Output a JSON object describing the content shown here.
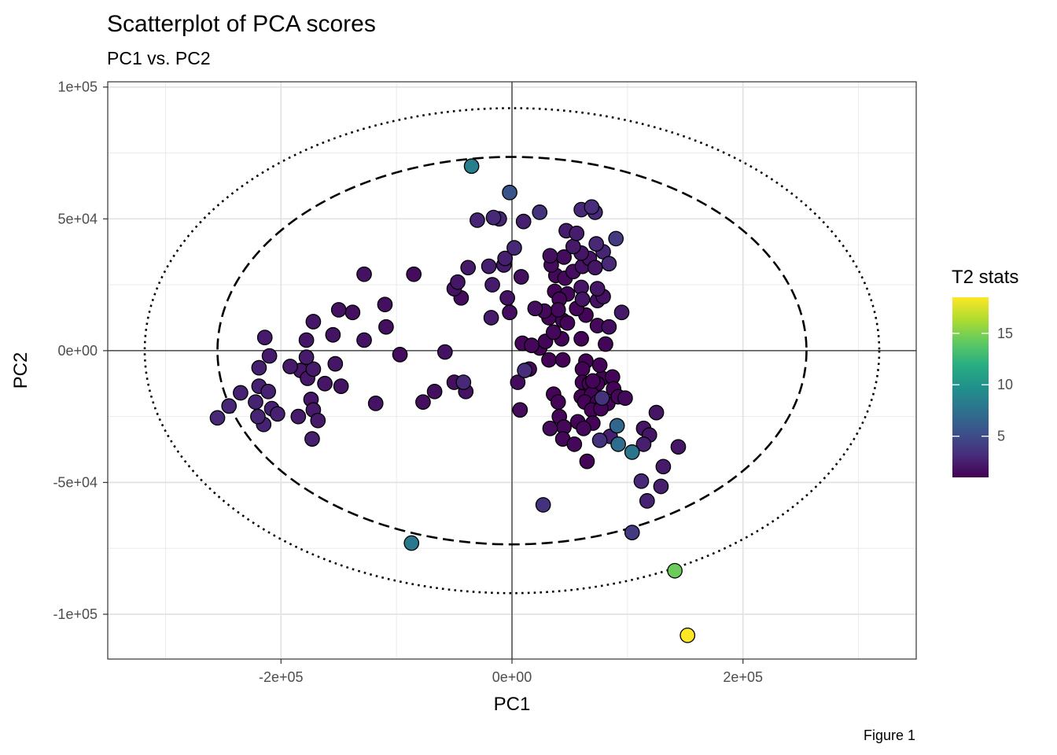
{
  "chart_data": {
    "type": "scatter",
    "title": "Scatterplot of PCA scores",
    "subtitle": "PC1 vs. PC2",
    "xlabel": "PC1",
    "ylabel": "PC2",
    "caption": "Figure 1",
    "xlim": [
      -350000,
      350000
    ],
    "ylim": [
      -117000,
      102000
    ],
    "x_ticks": [
      {
        "value": -200000,
        "label": "-2e+05"
      },
      {
        "value": 0,
        "label": "0e+00"
      },
      {
        "value": 200000,
        "label": "2e+05"
      }
    ],
    "y_ticks": [
      {
        "value": 100000,
        "label": "1e+05"
      },
      {
        "value": 50000,
        "label": "5e+04"
      },
      {
        "value": 0,
        "label": "0e+00"
      },
      {
        "value": -50000,
        "label": "-5e+04"
      },
      {
        "value": -100000,
        "label": "-1e+05"
      }
    ],
    "grid": true,
    "reference_lines": {
      "x": 0,
      "y": 0
    },
    "ellipses": [
      {
        "style": "dashed",
        "rx": 255000,
        "ry": 73500
      },
      {
        "style": "dotted",
        "rx": 318000,
        "ry": 92000
      }
    ],
    "colorbar": {
      "title": "T2 stats",
      "min": 1,
      "max": 18.5,
      "ticks": [
        {
          "value": 5,
          "label": "5"
        },
        {
          "value": 10,
          "label": "10"
        },
        {
          "value": 15,
          "label": "15"
        }
      ],
      "colormap": "viridis",
      "placement": "right"
    },
    "points": [
      {
        "x": -35000,
        "y": 70000,
        "t2": 8.5
      },
      {
        "x": -2000,
        "y": 60000,
        "t2": 5.5
      },
      {
        "x": 24000,
        "y": 52500,
        "t2": 3.5
      },
      {
        "x": -30000,
        "y": 49500,
        "t2": 2.8
      },
      {
        "x": -16000,
        "y": 50500,
        "t2": 3.0
      },
      {
        "x": -11000,
        "y": 50000,
        "t2": 2.8
      },
      {
        "x": 10000,
        "y": 49000,
        "t2": 2.5
      },
      {
        "x": 47000,
        "y": 45500,
        "t2": 2.4
      },
      {
        "x": 56000,
        "y": 44500,
        "t2": 2.4
      },
      {
        "x": 60000,
        "y": 53500,
        "t2": 3.0
      },
      {
        "x": 69000,
        "y": 54500,
        "t2": 3.2
      },
      {
        "x": 72000,
        "y": 52500,
        "t2": 3.0
      },
      {
        "x": 90000,
        "y": 42500,
        "t2": 4.0
      },
      {
        "x": 73000,
        "y": 40500,
        "t2": 3.0
      },
      {
        "x": 53000,
        "y": 39500,
        "t2": 2.2
      },
      {
        "x": 60000,
        "y": 37000,
        "t2": 2.0
      },
      {
        "x": 79000,
        "y": 37500,
        "t2": 2.8
      },
      {
        "x": 2000,
        "y": 39000,
        "t2": 3.0
      },
      {
        "x": -6000,
        "y": 35000,
        "t2": 2.5
      },
      {
        "x": 33000,
        "y": 36000,
        "t2": 1.7
      },
      {
        "x": 45000,
        "y": 35500,
        "t2": 1.5
      },
      {
        "x": 67000,
        "y": 35000,
        "t2": 1.9
      },
      {
        "x": -38000,
        "y": 31500,
        "t2": 2.2
      },
      {
        "x": -20000,
        "y": 32000,
        "t2": 2.5
      },
      {
        "x": -7000,
        "y": 32500,
        "t2": 2.2
      },
      {
        "x": 34000,
        "y": 32500,
        "t2": 1.5
      },
      {
        "x": 61000,
        "y": 32000,
        "t2": 1.8
      },
      {
        "x": 84000,
        "y": 33000,
        "t2": 3.0
      },
      {
        "x": 38000,
        "y": 28500,
        "t2": 1.3
      },
      {
        "x": 46000,
        "y": 27500,
        "t2": 1.4
      },
      {
        "x": 53000,
        "y": 30000,
        "t2": 1.6
      },
      {
        "x": 72000,
        "y": 31500,
        "t2": 2.0
      },
      {
        "x": -128000,
        "y": 29000,
        "t2": 1.8
      },
      {
        "x": -85000,
        "y": 29000,
        "t2": 1.5
      },
      {
        "x": -47000,
        "y": 26000,
        "t2": 2.0
      },
      {
        "x": 8000,
        "y": 28000,
        "t2": 1.7
      },
      {
        "x": -17000,
        "y": 25000,
        "t2": 2.3
      },
      {
        "x": -50000,
        "y": 23500,
        "t2": 1.9
      },
      {
        "x": -44000,
        "y": 20000,
        "t2": 1.5
      },
      {
        "x": 60000,
        "y": 24000,
        "t2": 2.0
      },
      {
        "x": 74000,
        "y": 23500,
        "t2": 2.0
      },
      {
        "x": 37000,
        "y": 22500,
        "t2": 1.2
      },
      {
        "x": 48000,
        "y": 21500,
        "t2": 1.3
      },
      {
        "x": 74000,
        "y": 19000,
        "t2": 1.8
      },
      {
        "x": -4000,
        "y": 20000,
        "t2": 1.9
      },
      {
        "x": 41000,
        "y": 19500,
        "t2": 1.3
      },
      {
        "x": 61000,
        "y": 19500,
        "t2": 2.0
      },
      {
        "x": 79000,
        "y": 20500,
        "t2": 1.8
      },
      {
        "x": -110000,
        "y": 17500,
        "t2": 1.7
      },
      {
        "x": -150000,
        "y": 15500,
        "t2": 1.8
      },
      {
        "x": -138000,
        "y": 14500,
        "t2": 1.7
      },
      {
        "x": 20000,
        "y": 16000,
        "t2": 1.7
      },
      {
        "x": 40000,
        "y": 15500,
        "t2": 1.4
      },
      {
        "x": 56000,
        "y": 16000,
        "t2": 1.3
      },
      {
        "x": 28000,
        "y": 15000,
        "t2": 1.4
      },
      {
        "x": -2000,
        "y": 14500,
        "t2": 1.6
      },
      {
        "x": -18000,
        "y": 12500,
        "t2": 2.3
      },
      {
        "x": 32000,
        "y": 12500,
        "t2": 1.2
      },
      {
        "x": 44000,
        "y": 11500,
        "t2": 1.2
      },
      {
        "x": 64000,
        "y": 13500,
        "t2": 1.2
      },
      {
        "x": 95000,
        "y": 14500,
        "t2": 2.2
      },
      {
        "x": 48000,
        "y": 10500,
        "t2": 1.2
      },
      {
        "x": 74000,
        "y": 9500,
        "t2": 1.4
      },
      {
        "x": 84000,
        "y": 9000,
        "t2": 1.6
      },
      {
        "x": -109000,
        "y": 9000,
        "t2": 1.7
      },
      {
        "x": -172000,
        "y": 11000,
        "t2": 2.1
      },
      {
        "x": -155000,
        "y": 6000,
        "t2": 1.9
      },
      {
        "x": 36000,
        "y": 7000,
        "t2": 1.3
      },
      {
        "x": 43000,
        "y": 4500,
        "t2": 1.2
      },
      {
        "x": 60000,
        "y": 4500,
        "t2": 1.2
      },
      {
        "x": -214000,
        "y": 5000,
        "t2": 2.3
      },
      {
        "x": -178000,
        "y": 4000,
        "t2": 2.0
      },
      {
        "x": -128000,
        "y": 4000,
        "t2": 1.9
      },
      {
        "x": 9000,
        "y": 2800,
        "t2": 1.3
      },
      {
        "x": 17000,
        "y": 2000,
        "t2": 1.3
      },
      {
        "x": 29000,
        "y": 3500,
        "t2": 1.2
      },
      {
        "x": 24000,
        "y": 1000,
        "t2": 1.1
      },
      {
        "x": 81000,
        "y": 2500,
        "t2": 1.2
      },
      {
        "x": -97000,
        "y": -1500,
        "t2": 1.6
      },
      {
        "x": -58000,
        "y": -500,
        "t2": 1.8
      },
      {
        "x": -210000,
        "y": -2000,
        "t2": 2.3
      },
      {
        "x": -178000,
        "y": -2500,
        "t2": 2.3
      },
      {
        "x": -172000,
        "y": -7000,
        "t2": 2.2
      },
      {
        "x": 32000,
        "y": -3500,
        "t2": 1.1
      },
      {
        "x": 44000,
        "y": -3500,
        "t2": 1.1
      },
      {
        "x": 64000,
        "y": -4000,
        "t2": 1.1
      },
      {
        "x": 76000,
        "y": -5500,
        "t2": 1.2
      },
      {
        "x": -219000,
        "y": -6500,
        "t2": 2.5
      },
      {
        "x": -192000,
        "y": -6000,
        "t2": 2.2
      },
      {
        "x": -183000,
        "y": -7500,
        "t2": 2.1
      },
      {
        "x": -153000,
        "y": -5000,
        "t2": 2.0
      },
      {
        "x": 15000,
        "y": -7000,
        "t2": 1.3
      },
      {
        "x": 11000,
        "y": -7500,
        "t2": 3.2
      },
      {
        "x": 61000,
        "y": -7000,
        "t2": 1.1
      },
      {
        "x": -148000,
        "y": -13500,
        "t2": 1.9
      },
      {
        "x": 70000,
        "y": -11500,
        "t2": 1.2
      },
      {
        "x": 78000,
        "y": -10500,
        "t2": 1.1
      },
      {
        "x": 87000,
        "y": -10000,
        "t2": 1.2
      },
      {
        "x": -235000,
        "y": -16000,
        "t2": 2.7
      },
      {
        "x": -219000,
        "y": -13500,
        "t2": 2.6
      },
      {
        "x": -211000,
        "y": -15500,
        "t2": 2.6
      },
      {
        "x": -177000,
        "y": -10500,
        "t2": 2.1
      },
      {
        "x": -162000,
        "y": -12500,
        "t2": 2.0
      },
      {
        "x": -42000,
        "y": -12000,
        "t2": 3.0
      },
      {
        "x": -40000,
        "y": -15500,
        "t2": 1.8
      },
      {
        "x": -50000,
        "y": -12000,
        "t2": 1.7
      },
      {
        "x": -67000,
        "y": -15500,
        "t2": 1.7
      },
      {
        "x": 5000,
        "y": -12000,
        "t2": 1.5
      },
      {
        "x": 61000,
        "y": -12000,
        "t2": 1.1
      },
      {
        "x": 67000,
        "y": -12500,
        "t2": 1.1
      },
      {
        "x": 74000,
        "y": -12500,
        "t2": 1.1
      },
      {
        "x": 88000,
        "y": -14500,
        "t2": 1.2
      },
      {
        "x": 92000,
        "y": -17500,
        "t2": 1.3
      },
      {
        "x": 98000,
        "y": -18000,
        "t2": 1.4
      },
      {
        "x": 36000,
        "y": -16500,
        "t2": 1.2
      },
      {
        "x": 60000,
        "y": -17500,
        "t2": 1.1
      },
      {
        "x": 69000,
        "y": -16500,
        "t2": 1.1
      },
      {
        "x": 78000,
        "y": -18000,
        "t2": 3.5
      },
      {
        "x": -174000,
        "y": -18500,
        "t2": 2.1
      },
      {
        "x": -118000,
        "y": -20000,
        "t2": 1.9
      },
      {
        "x": 40000,
        "y": -19500,
        "t2": 1.2
      },
      {
        "x": 63000,
        "y": -19500,
        "t2": 1.1
      },
      {
        "x": 74000,
        "y": -19500,
        "t2": 1.1
      },
      {
        "x": 83000,
        "y": -20000,
        "t2": 1.2
      },
      {
        "x": -245000,
        "y": -21000,
        "t2": 2.9
      },
      {
        "x": -222000,
        "y": -19500,
        "t2": 2.7
      },
      {
        "x": -208000,
        "y": -22000,
        "t2": 2.6
      },
      {
        "x": -172000,
        "y": -22500,
        "t2": 2.2
      },
      {
        "x": -77000,
        "y": -19500,
        "t2": 1.7
      },
      {
        "x": 7000,
        "y": -22500,
        "t2": 1.5
      },
      {
        "x": 69000,
        "y": -22500,
        "t2": 1.1
      },
      {
        "x": 77000,
        "y": -22000,
        "t2": 1.2
      },
      {
        "x": 125000,
        "y": -23500,
        "t2": 2.0
      },
      {
        "x": -255000,
        "y": -25500,
        "t2": 3.0
      },
      {
        "x": -220000,
        "y": -25000,
        "t2": 2.8
      },
      {
        "x": -203000,
        "y": -24000,
        "t2": 2.6
      },
      {
        "x": -185000,
        "y": -25000,
        "t2": 2.3
      },
      {
        "x": -168000,
        "y": -26500,
        "t2": 2.2
      },
      {
        "x": 41000,
        "y": -25000,
        "t2": 1.3
      },
      {
        "x": 57000,
        "y": -27000,
        "t2": 1.2
      },
      {
        "x": 70000,
        "y": -27500,
        "t2": 1.2
      },
      {
        "x": -215000,
        "y": -28000,
        "t2": 2.7
      },
      {
        "x": 33000,
        "y": -29500,
        "t2": 1.5
      },
      {
        "x": 45000,
        "y": -29000,
        "t2": 1.3
      },
      {
        "x": 62000,
        "y": -29500,
        "t2": 1.3
      },
      {
        "x": 91000,
        "y": -28500,
        "t2": 6.8
      },
      {
        "x": 114000,
        "y": -29500,
        "t2": 2.0
      },
      {
        "x": 119000,
        "y": -32000,
        "t2": 2.0
      },
      {
        "x": 44000,
        "y": -33500,
        "t2": 1.3
      },
      {
        "x": 54000,
        "y": -35500,
        "t2": 1.3
      },
      {
        "x": 76000,
        "y": -34000,
        "t2": 3.5
      },
      {
        "x": 85000,
        "y": -32500,
        "t2": 2.5
      },
      {
        "x": 92000,
        "y": -35500,
        "t2": 7.2
      },
      {
        "x": 114000,
        "y": -35500,
        "t2": 2.5
      },
      {
        "x": 144000,
        "y": -36500,
        "t2": 2.0
      },
      {
        "x": 104000,
        "y": -38500,
        "t2": 7.8
      },
      {
        "x": -173000,
        "y": -33500,
        "t2": 2.5
      },
      {
        "x": 65000,
        "y": -42000,
        "t2": 1.2
      },
      {
        "x": 131000,
        "y": -44000,
        "t2": 2.3
      },
      {
        "x": 112000,
        "y": -49500,
        "t2": 3.0
      },
      {
        "x": 129000,
        "y": -51500,
        "t2": 2.5
      },
      {
        "x": 117000,
        "y": -57000,
        "t2": 2.7
      },
      {
        "x": 27000,
        "y": -58500,
        "t2": 3.5
      },
      {
        "x": 104000,
        "y": -69000,
        "t2": 4.0
      },
      {
        "x": -87000,
        "y": -73000,
        "t2": 8.0
      },
      {
        "x": 141000,
        "y": -83500,
        "t2": 14.5
      },
      {
        "x": 152000,
        "y": -108000,
        "t2": 18.5
      }
    ]
  }
}
